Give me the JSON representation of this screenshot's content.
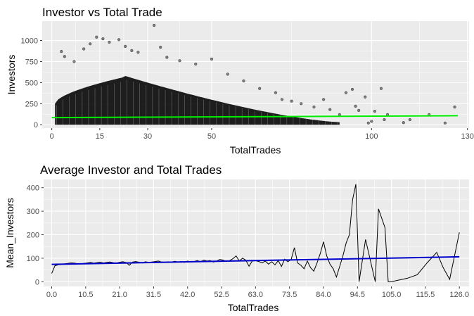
{
  "chart_data": [
    {
      "type": "scatter",
      "title": "Investor vs Total Trade",
      "xlabel": "TotalTrades",
      "ylabel": "Investors",
      "xlim": [
        -3,
        130.5
      ],
      "ylim": [
        -40,
        1230
      ],
      "xticks": [
        0,
        15,
        30,
        50,
        100,
        130
      ],
      "xtick_labels": [
        "0",
        "15",
        "30",
        "50",
        "100",
        "130"
      ],
      "yticks": [
        0,
        250,
        500,
        750,
        1000
      ],
      "ytick_labels": [
        "0",
        "250",
        "500",
        "750",
        "1000"
      ],
      "point_color": "#000000",
      "trend_color": "#00ee00",
      "trend": {
        "x": [
          0,
          127
        ],
        "y": [
          84,
          107
        ]
      },
      "dense_band": {
        "x_range": [
          1,
          90
        ],
        "peak_x": 22,
        "peak_y": 560
      },
      "outliers": [
        {
          "x": 3,
          "y": 870
        },
        {
          "x": 4,
          "y": 810
        },
        {
          "x": 7,
          "y": 750
        },
        {
          "x": 10,
          "y": 900
        },
        {
          "x": 12,
          "y": 960
        },
        {
          "x": 14,
          "y": 1040
        },
        {
          "x": 16,
          "y": 1020
        },
        {
          "x": 18,
          "y": 980
        },
        {
          "x": 21,
          "y": 1010
        },
        {
          "x": 23,
          "y": 930
        },
        {
          "x": 25,
          "y": 880
        },
        {
          "x": 27,
          "y": 860
        },
        {
          "x": 32,
          "y": 1180
        },
        {
          "x": 34,
          "y": 920
        },
        {
          "x": 36,
          "y": 800
        },
        {
          "x": 40,
          "y": 760
        },
        {
          "x": 45,
          "y": 720
        },
        {
          "x": 50,
          "y": 780
        },
        {
          "x": 55,
          "y": 600
        },
        {
          "x": 60,
          "y": 520
        },
        {
          "x": 65,
          "y": 430
        },
        {
          "x": 70,
          "y": 380
        },
        {
          "x": 72,
          "y": 300
        },
        {
          "x": 75,
          "y": 280
        },
        {
          "x": 78,
          "y": 250
        },
        {
          "x": 82,
          "y": 210
        },
        {
          "x": 85,
          "y": 300
        },
        {
          "x": 87,
          "y": 180
        },
        {
          "x": 90,
          "y": 120
        },
        {
          "x": 92,
          "y": 380
        },
        {
          "x": 94,
          "y": 420
        },
        {
          "x": 95,
          "y": 220
        },
        {
          "x": 96,
          "y": 170
        },
        {
          "x": 98,
          "y": 330
        },
        {
          "x": 99,
          "y": 20
        },
        {
          "x": 100,
          "y": 40
        },
        {
          "x": 101,
          "y": 160
        },
        {
          "x": 103,
          "y": 430
        },
        {
          "x": 104,
          "y": 60
        },
        {
          "x": 105,
          "y": 120
        },
        {
          "x": 110,
          "y": 25
        },
        {
          "x": 112,
          "y": 60
        },
        {
          "x": 118,
          "y": 120
        },
        {
          "x": 123,
          "y": 20
        },
        {
          "x": 126,
          "y": 210
        }
      ]
    },
    {
      "type": "line",
      "title": "Average Investor and Total Trades",
      "xlabel": "TotalTrades",
      "ylabel": "Mean_Investors",
      "xlim": [
        -2.5,
        129
      ],
      "ylim": [
        -20,
        435
      ],
      "xticks": [
        0,
        10.5,
        21,
        31.5,
        42,
        52.5,
        63,
        73.5,
        84,
        94.5,
        105,
        115.5,
        126
      ],
      "xtick_labels": [
        "0.0",
        "10.5",
        "21.0",
        "31.5",
        "42.0",
        "52.5",
        "63.0",
        "73.5",
        "84.0",
        "94.5",
        "105.0",
        "115.5",
        "126.0"
      ],
      "yticks": [
        0,
        100,
        200,
        300,
        400
      ],
      "ytick_labels": [
        "0",
        "100",
        "200",
        "300",
        "400"
      ],
      "line_color": "#000000",
      "trend_color": "#0000cc",
      "trend": {
        "x": [
          0,
          126
        ],
        "y": [
          74,
          106
        ]
      },
      "x": [
        0,
        1,
        2,
        3,
        4,
        5,
        6,
        7,
        8,
        9,
        10,
        11,
        12,
        13,
        14,
        15,
        16,
        17,
        18,
        19,
        20,
        21,
        22,
        23,
        24,
        25,
        26,
        27,
        28,
        29,
        30,
        31,
        32,
        33,
        34,
        35,
        36,
        37,
        38,
        39,
        40,
        41,
        42,
        43,
        44,
        45,
        46,
        47,
        48,
        49,
        50,
        51,
        52,
        53,
        54,
        55,
        56,
        57,
        58,
        59,
        60,
        61,
        62,
        63,
        64,
        65,
        66,
        67,
        68,
        69,
        70,
        71,
        72,
        73,
        74,
        75,
        76,
        77,
        78,
        79,
        80,
        81,
        82,
        83,
        84,
        85,
        86,
        87,
        88,
        89,
        90,
        91,
        92,
        93,
        94,
        95,
        97,
        99,
        100,
        101,
        103,
        104,
        105,
        110,
        113,
        116,
        119,
        121,
        123,
        126
      ],
      "values": [
        35,
        68,
        72,
        74,
        76,
        78,
        80,
        79,
        77,
        76,
        78,
        80,
        82,
        79,
        81,
        83,
        80,
        82,
        84,
        81,
        79,
        83,
        85,
        82,
        70,
        84,
        86,
        83,
        80,
        85,
        82,
        84,
        86,
        88,
        84,
        82,
        85,
        83,
        87,
        84,
        86,
        82,
        88,
        84,
        86,
        90,
        85,
        92,
        88,
        90,
        84,
        88,
        95,
        92,
        86,
        90,
        98,
        110,
        88,
        100,
        92,
        66,
        88,
        90,
        86,
        80,
        88,
        75,
        85,
        72,
        90,
        65,
        96,
        85,
        95,
        145,
        80,
        70,
        55,
        88,
        60,
        45,
        80,
        120,
        170,
        110,
        75,
        55,
        20,
        65,
        110,
        165,
        200,
        350,
        415,
        0,
        180,
        60,
        0,
        310,
        230,
        0,
        0,
        15,
        30,
        80,
        125,
        60,
        10,
        210
      ]
    }
  ]
}
